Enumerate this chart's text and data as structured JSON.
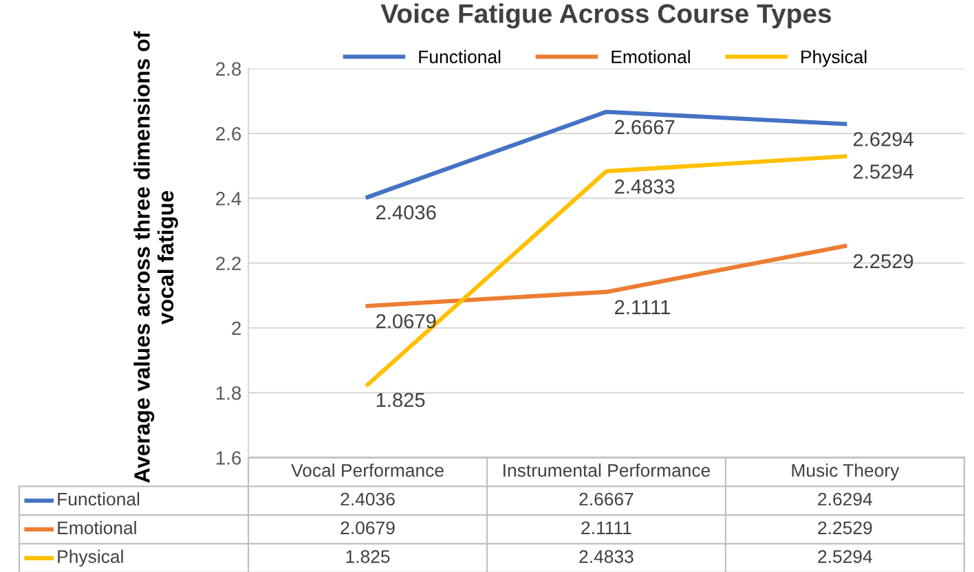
{
  "chart_data": {
    "type": "line",
    "title": "Voice Fatigue Across Course Types",
    "ylabel": "Average values across three dimensions of vocal fatigue",
    "categories": [
      "Vocal Performance",
      "Instrumental Performance",
      "Music Theory"
    ],
    "series": [
      {
        "name": "Functional",
        "color": "#4472c4",
        "values": [
          2.4036,
          2.6667,
          2.6294
        ]
      },
      {
        "name": "Emotional",
        "color": "#ed7d31",
        "values": [
          2.0679,
          2.1111,
          2.2529
        ]
      },
      {
        "name": "Physical",
        "color": "#ffc000",
        "values": [
          1.825,
          2.4833,
          2.5294
        ]
      }
    ],
    "annotations": [
      {
        "text": "2.4036",
        "x": "Vocal Performance",
        "y": 2.4036
      },
      {
        "text": "2.6667",
        "x": "Instrumental Performance",
        "y": 2.6667
      },
      {
        "text": "2.6294",
        "x": "Music Theory",
        "y": 2.6294
      },
      {
        "text": "2.0679",
        "x": "Vocal Performance",
        "y": 2.0679
      },
      {
        "text": "2.1111",
        "x": "Instrumental Performance",
        "y": 2.1111
      },
      {
        "text": "2.2529",
        "x": "Music Theory",
        "y": 2.2529
      },
      {
        "text": "1.825",
        "x": "Vocal Performance",
        "y": 1.825
      },
      {
        "text": "2.4833",
        "x": "Instrumental Performance",
        "y": 2.4833
      },
      {
        "text": "2.5294",
        "x": "Music Theory",
        "y": 2.5294
      }
    ],
    "ylim": [
      1.6,
      2.8
    ],
    "yticks": [
      1.6,
      1.8,
      2,
      2.2,
      2.4,
      2.6,
      2.8
    ],
    "grid": "y",
    "legend": "top",
    "data_labels": true,
    "marker": "none",
    "line_style": "solid"
  }
}
